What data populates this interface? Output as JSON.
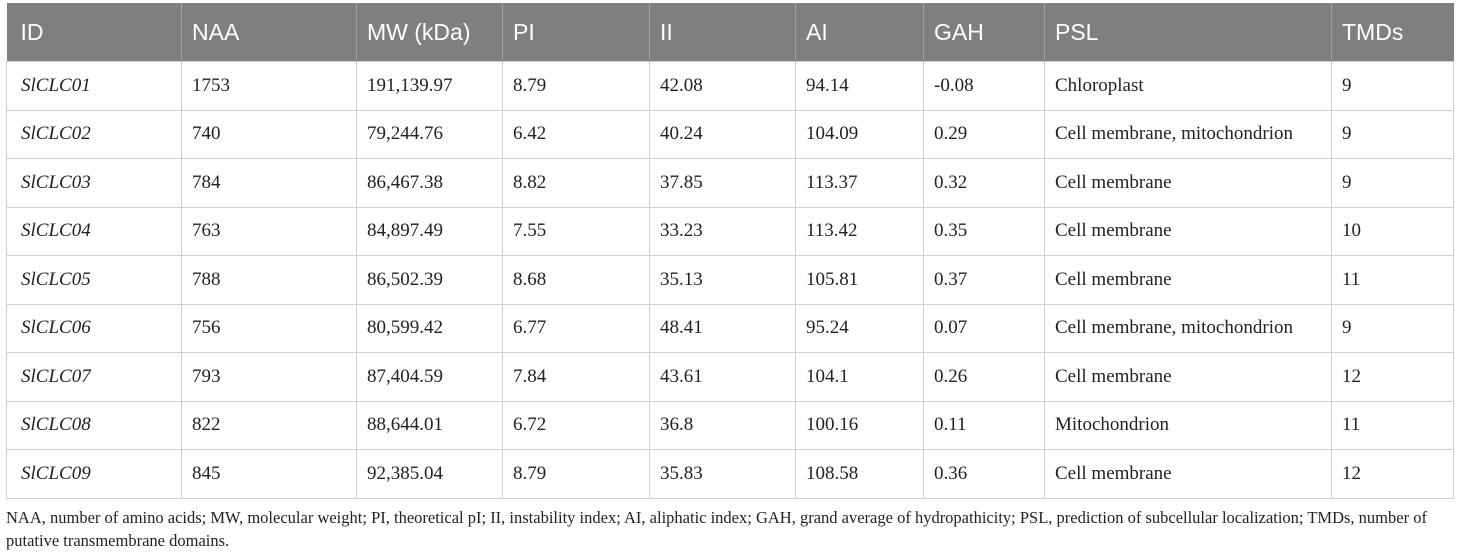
{
  "table": {
    "header": [
      "ID",
      "NAA",
      "MW (kDa)",
      "PI",
      "II",
      "AI",
      "GAH",
      "PSL",
      "TMDs"
    ],
    "rows": [
      [
        "SlCLC01",
        "1753",
        "191,139.97",
        "8.79",
        "42.08",
        "94.14",
        "-0.08",
        "Chloroplast",
        "9"
      ],
      [
        "SlCLC02",
        "740",
        "79,244.76",
        "6.42",
        "40.24",
        "104.09",
        "0.29",
        "Cell membrane, mitochondrion",
        "9"
      ],
      [
        "SlCLC03",
        "784",
        "86,467.38",
        "8.82",
        "37.85",
        "113.37",
        "0.32",
        "Cell membrane",
        "9"
      ],
      [
        "SlCLC04",
        "763",
        "84,897.49",
        "7.55",
        "33.23",
        "113.42",
        "0.35",
        "Cell membrane",
        "10"
      ],
      [
        "SlCLC05",
        "788",
        "86,502.39",
        "8.68",
        "35.13",
        "105.81",
        "0.37",
        "Cell membrane",
        "11"
      ],
      [
        "SlCLC06",
        "756",
        "80,599.42",
        "6.77",
        "48.41",
        "95.24",
        "0.07",
        "Cell membrane, mitochondrion",
        "9"
      ],
      [
        "SlCLC07",
        "793",
        "87,404.59",
        "7.84",
        "43.61",
        "104.1",
        "0.26",
        "Cell membrane",
        "12"
      ],
      [
        "SlCLC08",
        "822",
        "88,644.01",
        "6.72",
        "36.8",
        "100.16",
        "0.11",
        "Mitochondrion",
        "11"
      ],
      [
        "SlCLC09",
        "845",
        "92,385.04",
        "8.79",
        "35.83",
        "108.58",
        "0.36",
        "Cell membrane",
        "12"
      ]
    ],
    "footnote": "NAA, number of amino acids; MW, molecular weight; PI, theoretical pI; II, instability index; AI, aliphatic index; GAH, grand average of hydropathicity; PSL, prediction of subcellular localization; TMDs, number of putative transmembrane domains."
  }
}
